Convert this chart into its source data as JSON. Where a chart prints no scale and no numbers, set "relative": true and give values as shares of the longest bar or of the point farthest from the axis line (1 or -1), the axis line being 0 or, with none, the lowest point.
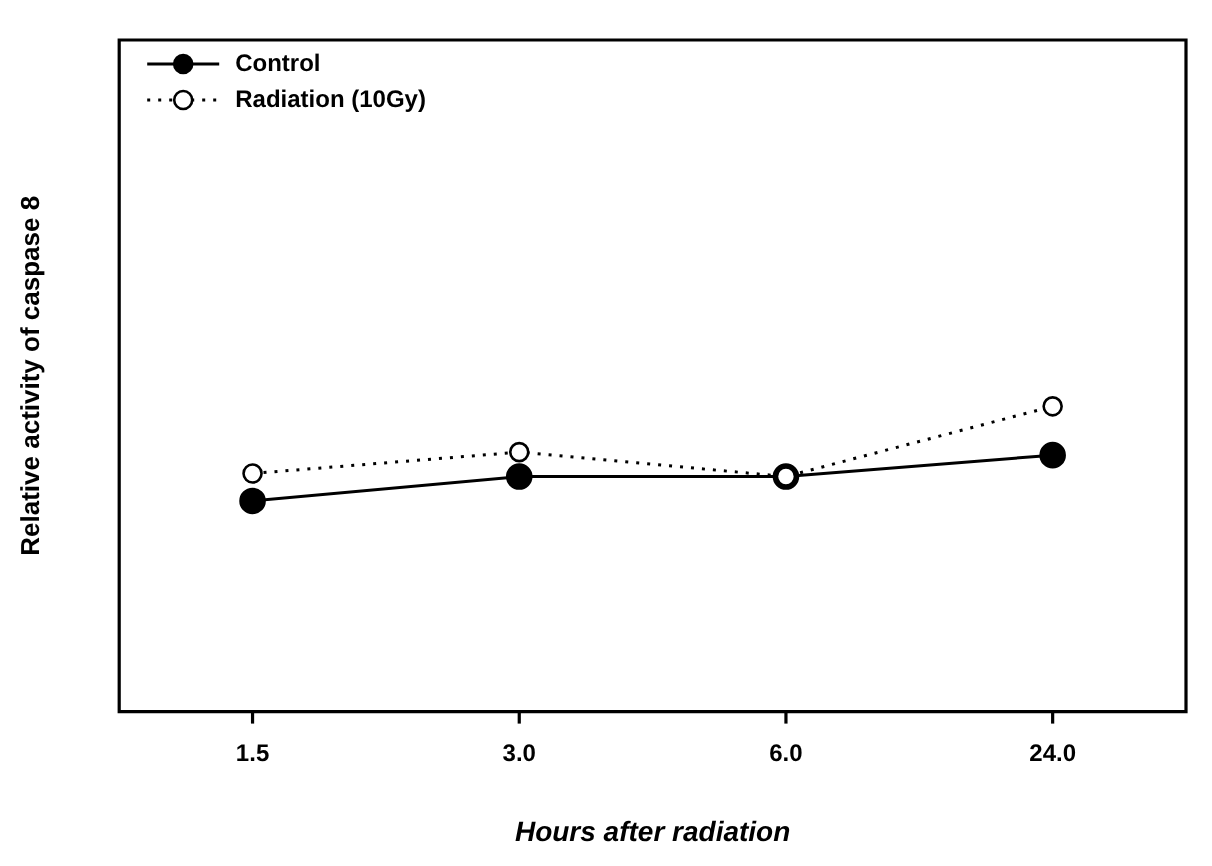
{
  "chart_data": {
    "type": "line",
    "relative": true,
    "xlabel": "Hours after radiation",
    "ylabel": "Relative activity of caspase 8",
    "categories": [
      "1.5",
      "3.0",
      "6.0",
      "24.0"
    ],
    "legend": "top left",
    "grid": false,
    "marker": "circle",
    "series": [
      {
        "name": "Control",
        "color": "#000000",
        "line_style": "solid",
        "values": [
          0.69,
          0.77,
          0.77,
          0.84
        ]
      },
      {
        "name": "Radiation (10Gy)",
        "color": "#000000",
        "line_style": "dotted",
        "values": [
          0.78,
          0.85,
          0.77,
          1
        ]
      }
    ]
  }
}
